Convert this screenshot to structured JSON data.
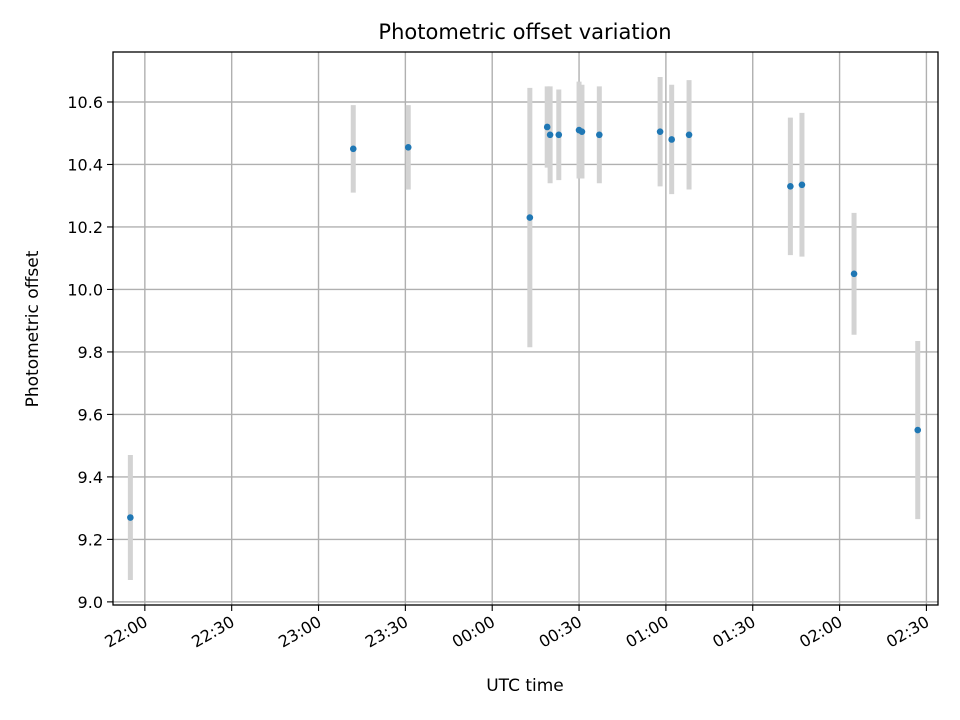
{
  "chart_data": {
    "type": "scatter",
    "title": "Photometric offset variation",
    "xlabel": "UTC time",
    "ylabel": "Photometric offset",
    "x_ticks": [
      "22:00",
      "22:30",
      "23:00",
      "23:30",
      "00:00",
      "00:30",
      "01:00",
      "01:30",
      "02:00",
      "02:30"
    ],
    "y_ticks": [
      "9.0",
      "9.2",
      "9.4",
      "9.6",
      "9.8",
      "10.0",
      "10.2",
      "10.4",
      "10.6"
    ],
    "xlim": [
      "21:49",
      "02:34"
    ],
    "ylim": [
      8.99,
      10.76
    ],
    "grid": true,
    "colors": {
      "point": "#1f77b4",
      "errorbar": "#d3d3d3"
    },
    "points": [
      {
        "x": "21:55",
        "y": 9.27,
        "yerr": 0.2
      },
      {
        "x": "23:12",
        "y": 10.45,
        "yerr": 0.14
      },
      {
        "x": "23:31",
        "y": 10.455,
        "yerr": 0.135
      },
      {
        "x": "00:13",
        "y": 10.23,
        "yerr": 0.415
      },
      {
        "x": "00:19",
        "y": 10.52,
        "yerr": 0.13
      },
      {
        "x": "00:20",
        "y": 10.495,
        "yerr": 0.155
      },
      {
        "x": "00:23",
        "y": 10.495,
        "yerr": 0.145
      },
      {
        "x": "00:30",
        "y": 10.51,
        "yerr": 0.155
      },
      {
        "x": "00:31",
        "y": 10.505,
        "yerr": 0.15
      },
      {
        "x": "00:37",
        "y": 10.495,
        "yerr": 0.155
      },
      {
        "x": "00:58",
        "y": 10.505,
        "yerr": 0.175
      },
      {
        "x": "01:02",
        "y": 10.48,
        "yerr": 0.175
      },
      {
        "x": "01:08",
        "y": 10.495,
        "yerr": 0.175
      },
      {
        "x": "01:43",
        "y": 10.33,
        "yerr": 0.22
      },
      {
        "x": "01:47",
        "y": 10.335,
        "yerr": 0.23
      },
      {
        "x": "02:05",
        "y": 10.05,
        "yerr": 0.195
      },
      {
        "x": "02:27",
        "y": 9.55,
        "yerr": 0.285
      }
    ]
  }
}
